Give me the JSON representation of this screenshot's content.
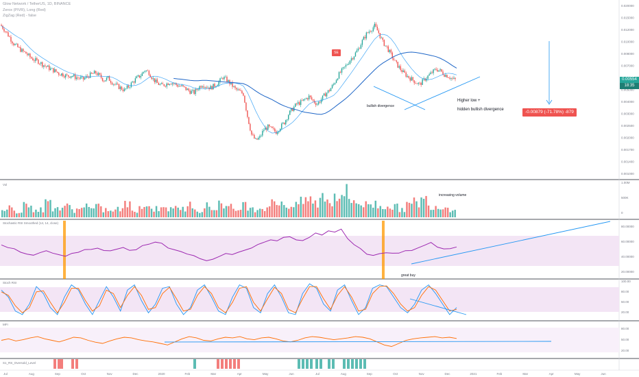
{
  "header": {
    "symbol_line": "Glow Network / TetherUS, 1D, BINANCE",
    "indicator_line_1": "Zerox (PIVR), Long (Red)",
    "indicator_line_2": "ZigZag (Red) - false"
  },
  "colors": {
    "up": "#26a69a",
    "down": "#ef5350",
    "ma": "#2196f3",
    "rsi": "#9c27b0",
    "stoch_k": "#2196f3",
    "stoch_d": "#ff6d00",
    "mfi": "#ff6d00",
    "drawing": "#2196f3",
    "highlight": "#ff9800",
    "band": "#f3e5f5"
  },
  "price_axis": [
    "0.020000",
    "0.015000",
    "0.012000",
    "0.010000",
    "0.008000",
    "0.007000",
    "0.006000",
    "0.005000",
    "0.004000",
    "0.003000",
    "0.002500",
    "0.002000",
    "0.001700",
    "0.001400",
    "0.001000"
  ],
  "last_price": "0.00554",
  "last_price_sub": "18:35",
  "measure_label": "-0.00879 (-71.78%) -879",
  "se_badge": "SE",
  "annotations": {
    "bullish_divergence": "bullish divergence",
    "higher_low": "Higher low +",
    "hidden_divergence": "hidden bullish divergence",
    "increasing_volume": "increasing volume",
    "great_buy": "great buy"
  },
  "panes": {
    "volume_label": "Vol",
    "volume_axis": [
      "1.00M",
      "500K",
      "0"
    ],
    "rsi_label": "Stochastic RSI Smoothed (14, 14, close)",
    "rsi_axis": [
      "80.00000",
      "60.00000",
      "40.00000",
      "20.00000"
    ],
    "stoch_label": "Stoch RSI",
    "stoch_axis": [
      "100.00",
      "80.00",
      "50.00",
      "20.00"
    ],
    "mfi_label": "MFI",
    "mfi_axis": [
      "80.00",
      "50.00",
      "20.00"
    ],
    "bottom_label": "S1_RS_Oversold_Level"
  },
  "time_axis": [
    "Jul",
    "Aug",
    "Sep",
    "Oct",
    "Nov",
    "Dec",
    "2020",
    "Feb",
    "Mar",
    "Apr",
    "May",
    "Jun",
    "Jul",
    "Aug",
    "Sep",
    "Oct",
    "Nov",
    "Dec",
    "2021",
    "Feb",
    "Mar",
    "Apr",
    "May",
    "Jun"
  ],
  "chart_data": {
    "type": "candlestick",
    "price_scale": "log",
    "price_range": [
      0.001,
      0.02
    ],
    "close_shape": [
      0.0145,
      0.0132,
      0.0118,
      0.0105,
      0.0098,
      0.0092,
      0.0088,
      0.0082,
      0.0078,
      0.0076,
      0.0072,
      0.0069,
      0.0066,
      0.0064,
      0.0061,
      0.006,
      0.0058,
      0.0059,
      0.0057,
      0.0056,
      0.0055,
      0.0058,
      0.006,
      0.0062,
      0.0058,
      0.0054,
      0.0056,
      0.0052,
      0.0049,
      0.0047,
      0.0045,
      0.0048,
      0.0052,
      0.0056,
      0.0059,
      0.0065,
      0.0062,
      0.0055,
      0.0051,
      0.0049,
      0.005,
      0.0052,
      0.0051,
      0.0049,
      0.0048,
      0.0046,
      0.0044,
      0.0043,
      0.0047,
      0.005,
      0.0048,
      0.0047,
      0.0049,
      0.0052,
      0.0057,
      0.0054,
      0.005,
      0.0046,
      0.0044,
      0.0042,
      0.0028,
      0.002,
      0.0018,
      0.0019,
      0.0022,
      0.0023,
      0.0022,
      0.0021,
      0.0023,
      0.0025,
      0.0029,
      0.0032,
      0.0035,
      0.0036,
      0.0038,
      0.004,
      0.0037,
      0.0035,
      0.0038,
      0.0042,
      0.0045,
      0.005,
      0.0058,
      0.0064,
      0.007,
      0.0078,
      0.0085,
      0.0095,
      0.011,
      0.0125,
      0.0135,
      0.0145,
      0.0128,
      0.0108,
      0.0098,
      0.0086,
      0.0075,
      0.0068,
      0.0062,
      0.0058,
      0.0055,
      0.0052,
      0.005,
      0.0054,
      0.0058,
      0.0062,
      0.0066,
      0.0064,
      0.006,
      0.0058,
      0.0055,
      0.0054
    ],
    "volume_levels": [
      0.3,
      0.4,
      0.25,
      0.55,
      0.35,
      0.3,
      0.6,
      0.4,
      0.35,
      0.45,
      0.3,
      0.5,
      0.35,
      0.4,
      0.3,
      0.25,
      0.35,
      0.5,
      0.3,
      0.45,
      0.4,
      0.35,
      0.55,
      0.3,
      0.4,
      0.35,
      0.5,
      0.3,
      0.45,
      0.35,
      0.6,
      0.4,
      0.3,
      0.5,
      0.45,
      0.35,
      0.4,
      0.55,
      0.65,
      0.5,
      0.45,
      0.6,
      0.75,
      0.55,
      0.85,
      0.65,
      0.95,
      1.0,
      0.7,
      0.6,
      0.5,
      0.55,
      0.45,
      0.5,
      0.4,
      0.35,
      0.5,
      0.6,
      0.7,
      0.5,
      0.45,
      0.4,
      0.35
    ],
    "rsi_values": [
      60,
      55,
      50,
      45,
      42,
      40,
      42,
      45,
      43,
      41,
      38,
      40,
      44,
      48,
      50,
      52,
      47,
      45,
      50,
      52,
      49,
      47,
      55,
      60,
      65,
      62,
      54,
      48,
      45,
      40,
      36,
      30,
      28,
      32,
      35,
      40,
      38,
      44,
      48,
      52,
      58,
      63,
      68,
      65,
      72,
      75,
      70,
      68,
      74,
      80,
      78,
      85,
      82,
      88,
      72,
      60,
      50,
      42,
      38,
      40,
      42,
      44,
      43,
      46,
      48,
      52,
      58,
      62,
      55,
      52,
      50,
      54
    ],
    "stoch_k": [
      80,
      60,
      20,
      10,
      40,
      90,
      70,
      30,
      10,
      60,
      95,
      80,
      40,
      10,
      50,
      90,
      60,
      20,
      80,
      95,
      50,
      15,
      40,
      85,
      90,
      40,
      10,
      30,
      80,
      95,
      60,
      20,
      10,
      60,
      95,
      85,
      30,
      15,
      70,
      95,
      60,
      15,
      10,
      70,
      98,
      85,
      40,
      20,
      80,
      95,
      50,
      10,
      30,
      85,
      95,
      90,
      60,
      30,
      15,
      40,
      80,
      95,
      70,
      40,
      10,
      30
    ],
    "stoch_d": [
      75,
      65,
      35,
      15,
      30,
      75,
      78,
      45,
      15,
      45,
      85,
      85,
      50,
      20,
      35,
      80,
      70,
      30,
      65,
      90,
      65,
      25,
      30,
      70,
      88,
      55,
      20,
      25,
      65,
      90,
      70,
      30,
      15,
      45,
      85,
      90,
      45,
      20,
      55,
      88,
      70,
      25,
      15,
      55,
      90,
      90,
      55,
      25,
      65,
      90,
      60,
      20,
      25,
      70,
      90,
      92,
      70,
      40,
      20,
      30,
      65,
      90,
      80,
      50,
      20,
      25
    ],
    "mfi_values": [
      50,
      55,
      48,
      52,
      58,
      62,
      55,
      50,
      45,
      52,
      60,
      58,
      50,
      44,
      40,
      48,
      55,
      60,
      58,
      52,
      48,
      45,
      40,
      35,
      45,
      55,
      62,
      58,
      50,
      48,
      55,
      60,
      58,
      62,
      55,
      52,
      58,
      60,
      55,
      48,
      45,
      50,
      58,
      62,
      60,
      56,
      52,
      55,
      58,
      62,
      60,
      55,
      45,
      35,
      30,
      40,
      50,
      55,
      58,
      60,
      62,
      58,
      60,
      56
    ]
  }
}
